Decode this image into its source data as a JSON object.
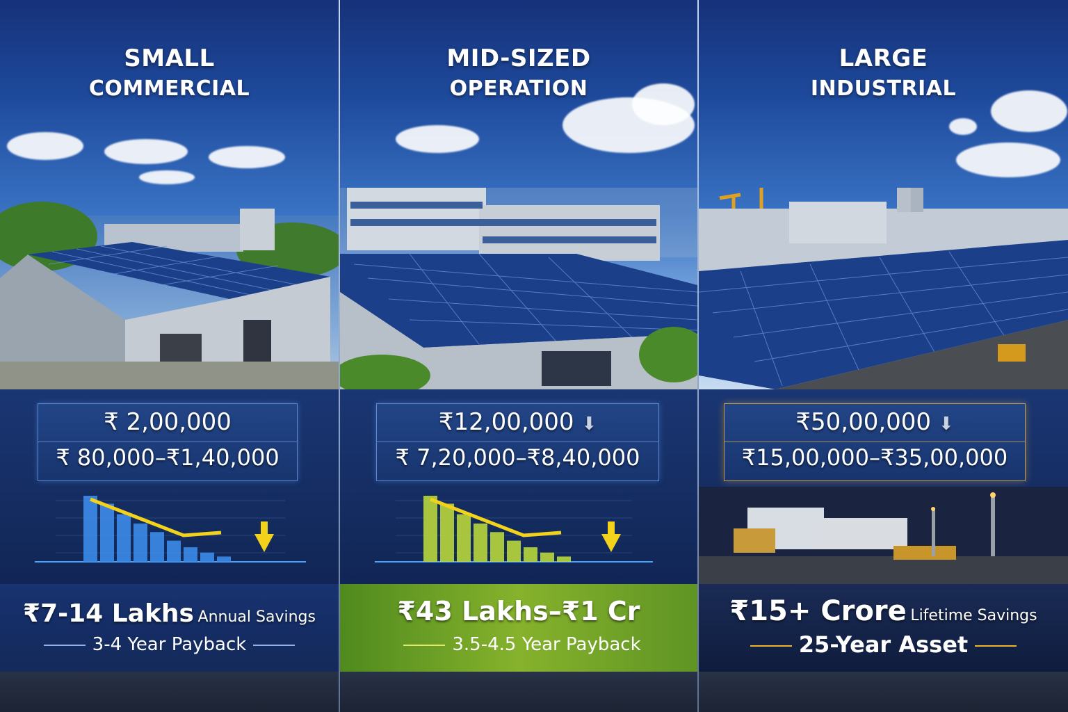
{
  "panels": [
    {
      "title_line1": "SMALL",
      "title_line2": "COMMERCIAL",
      "cost": "₹ 2,00,000",
      "savings_range": "₹ 80,000–₹1,40,000",
      "headline_value": "₹7-14 Lakhs",
      "headline_label": "Annual Savings",
      "footer": "3-4 Year Payback",
      "bar_color": "#3d8be8",
      "bar_levels": [
        1.0,
        0.88,
        0.72,
        0.58,
        0.45,
        0.32,
        0.22,
        0.14,
        0.08
      ]
    },
    {
      "title_line1": "MID-SIZED",
      "title_line2": "OPERATION",
      "cost": "₹12,00,000",
      "savings_range": "₹ 7,20,000–₹8,40,000",
      "headline_value": "₹43 Lakhs–₹1 Cr",
      "headline_label": "",
      "footer": "3.5-4.5 Year Payback",
      "bar_color": "#b8d63a",
      "bar_levels": [
        1.0,
        0.88,
        0.72,
        0.58,
        0.45,
        0.32,
        0.22,
        0.14,
        0.08
      ]
    },
    {
      "title_line1": "LARGE",
      "title_line2": "INDUSTRIAL",
      "cost": "₹50,00,000",
      "savings_range": "₹15,00,000–₹35,00,000",
      "headline_value": "₹15+ Crore",
      "headline_label": "Lifetime Savings",
      "footer": "25-Year Asset"
    }
  ],
  "colors": {
    "accent_blue": "#4aa3ff",
    "accent_green": "#8dbb2a",
    "accent_gold": "#f0b429",
    "arrow_yellow": "#f2d21b"
  },
  "icons": [
    "down-arrow-icon",
    "trend-arrow-icon"
  ]
}
